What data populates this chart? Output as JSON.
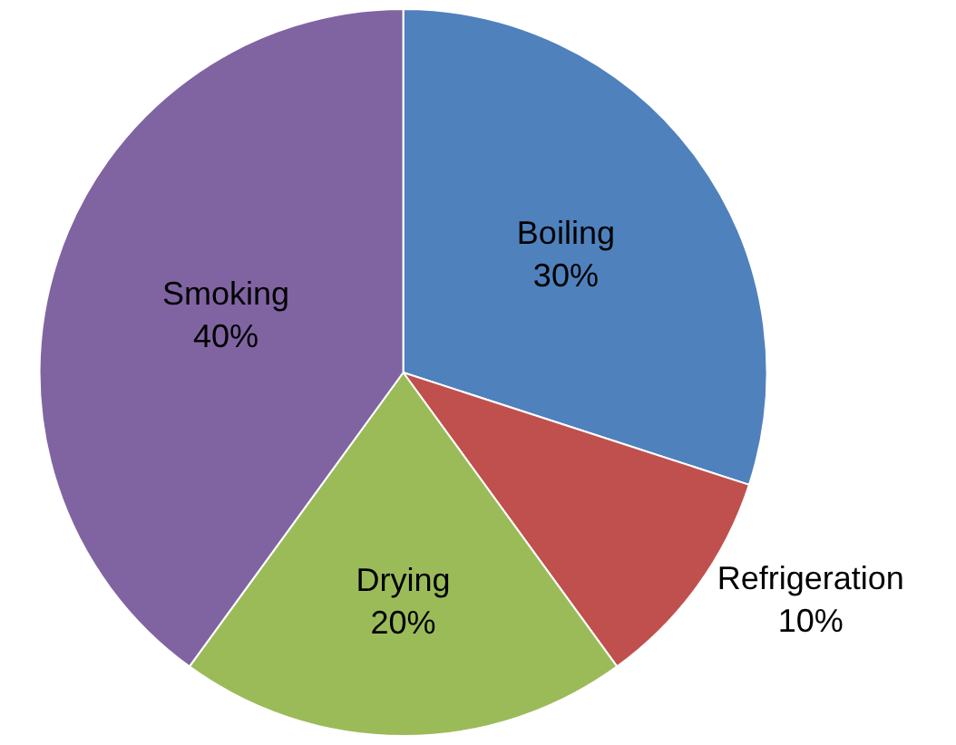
{
  "chart_data": {
    "type": "pie",
    "categories": [
      "Boiling",
      "Refrigeration",
      "Drying",
      "Smoking"
    ],
    "values": [
      30,
      10,
      20,
      40
    ],
    "colors": [
      "#4f81bd",
      "#c0504d",
      "#9bbb59",
      "#8064a2"
    ],
    "value_labels": [
      "30%",
      "10%",
      "20%",
      "40%"
    ],
    "legend": false
  }
}
